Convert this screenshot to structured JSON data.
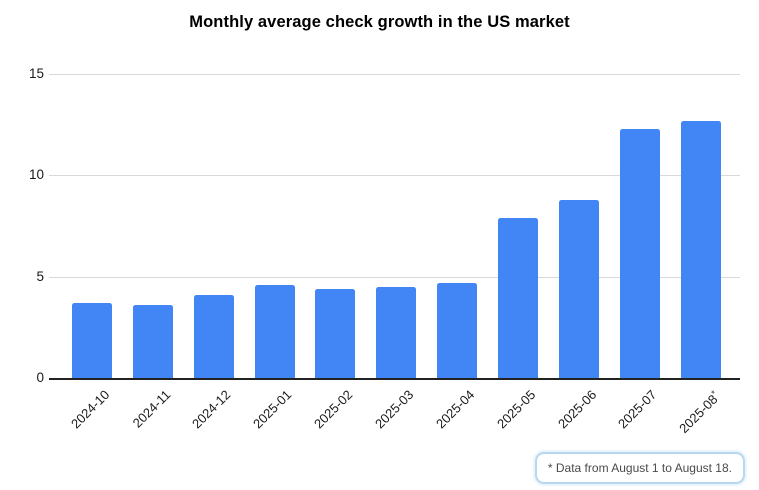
{
  "page": {
    "background": "#ffffff"
  },
  "chart_data": {
    "type": "bar",
    "title": "Monthly average check growth in the US market",
    "categories": [
      "2024-10",
      "2024-11",
      "2024-12",
      "2025-01",
      "2025-02",
      "2025-03",
      "2025-04",
      "2025-05",
      "2025-06",
      "2025-07",
      "2025-08*"
    ],
    "values": [
      3.7,
      3.6,
      4.1,
      4.6,
      4.4,
      4.5,
      4.7,
      7.9,
      8.8,
      12.3,
      12.7
    ],
    "xlabel": "",
    "ylabel": "",
    "yticks": [
      0,
      5,
      10,
      15
    ],
    "ylim": [
      0,
      15
    ],
    "grid": true,
    "legend": "none",
    "x_label_rotation_deg": 45,
    "footnote": "* Data from August 1 to August 18.",
    "footnote_marker": "*"
  },
  "colors": {
    "bar": "#4285f4",
    "gridline": "#d9d9d9",
    "axis_line": "#222222",
    "title_text": "#000000",
    "tick_text": "#1a1a1a",
    "footnote_text": "#4a4a4a",
    "footnote_border": "#b5d8ef",
    "background": "#ffffff"
  }
}
